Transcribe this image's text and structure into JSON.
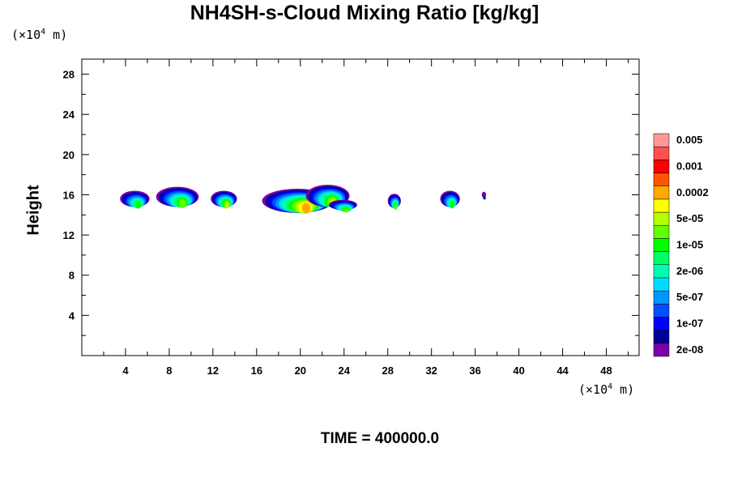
{
  "chart_data": {
    "type": "heatmap",
    "title": "NH4SH-s-Cloud Mixing Ratio [kg/kg]",
    "xlabel": "",
    "ylabel": "Height",
    "x_unit": {
      "prefix": "(×10",
      "exp": "4",
      "suffix": " m)"
    },
    "y_unit": {
      "prefix": "(×10",
      "exp": "4",
      "suffix": " m)"
    },
    "xlim": [
      0,
      51
    ],
    "ylim": [
      0,
      29.5
    ],
    "x_ticks": [
      4,
      8,
      12,
      16,
      20,
      24,
      28,
      32,
      36,
      40,
      44,
      48
    ],
    "y_ticks": [
      4,
      8,
      12,
      16,
      20,
      24,
      28
    ],
    "colorbar": {
      "colors": [
        "#7a00a8",
        "#000096",
        "#0000ff",
        "#0050ff",
        "#0096ff",
        "#00dcff",
        "#00ffb4",
        "#00ff64",
        "#00ff00",
        "#64ff00",
        "#b4ff00",
        "#ffff00",
        "#ffaa00",
        "#ff5500",
        "#ff0000",
        "#ff5050",
        "#ff9999"
      ],
      "labels": [
        "2e-08",
        "1e-07",
        "5e-07",
        "2e-06",
        "1e-05",
        "5e-05",
        "0.0002",
        "0.001",
        "0.005"
      ],
      "label_every": 2
    },
    "cloud_clusters": [
      {
        "x_range": [
          3.5,
          6.2
        ],
        "y_range": [
          14.8,
          16.4
        ],
        "max_level": 8
      },
      {
        "x_range": [
          6.8,
          10.7
        ],
        "y_range": [
          14.8,
          16.8
        ],
        "max_level": 9
      },
      {
        "x_range": [
          11.8,
          14.2
        ],
        "y_range": [
          14.8,
          16.4
        ],
        "max_level": 10
      },
      {
        "x_range": [
          16.5,
          23.0
        ],
        "y_range": [
          14.2,
          16.6
        ],
        "max_level": 12
      },
      {
        "x_range": [
          20.5,
          24.5
        ],
        "y_range": [
          14.8,
          17.0
        ],
        "max_level": 10
      },
      {
        "x_range": [
          22.6,
          25.2
        ],
        "y_range": [
          14.5,
          15.5
        ],
        "max_level": 9
      },
      {
        "x_range": [
          28.0,
          29.2
        ],
        "y_range": [
          14.7,
          16.1
        ],
        "max_level": 9
      },
      {
        "x_range": [
          32.8,
          34.6
        ],
        "y_range": [
          14.8,
          16.4
        ],
        "max_level": 8
      },
      {
        "x_range": [
          36.6,
          37.0
        ],
        "y_range": [
          15.7,
          16.3
        ],
        "max_level": 1
      }
    ]
  },
  "footer": {
    "time_label": "TIME = 400000.0"
  }
}
